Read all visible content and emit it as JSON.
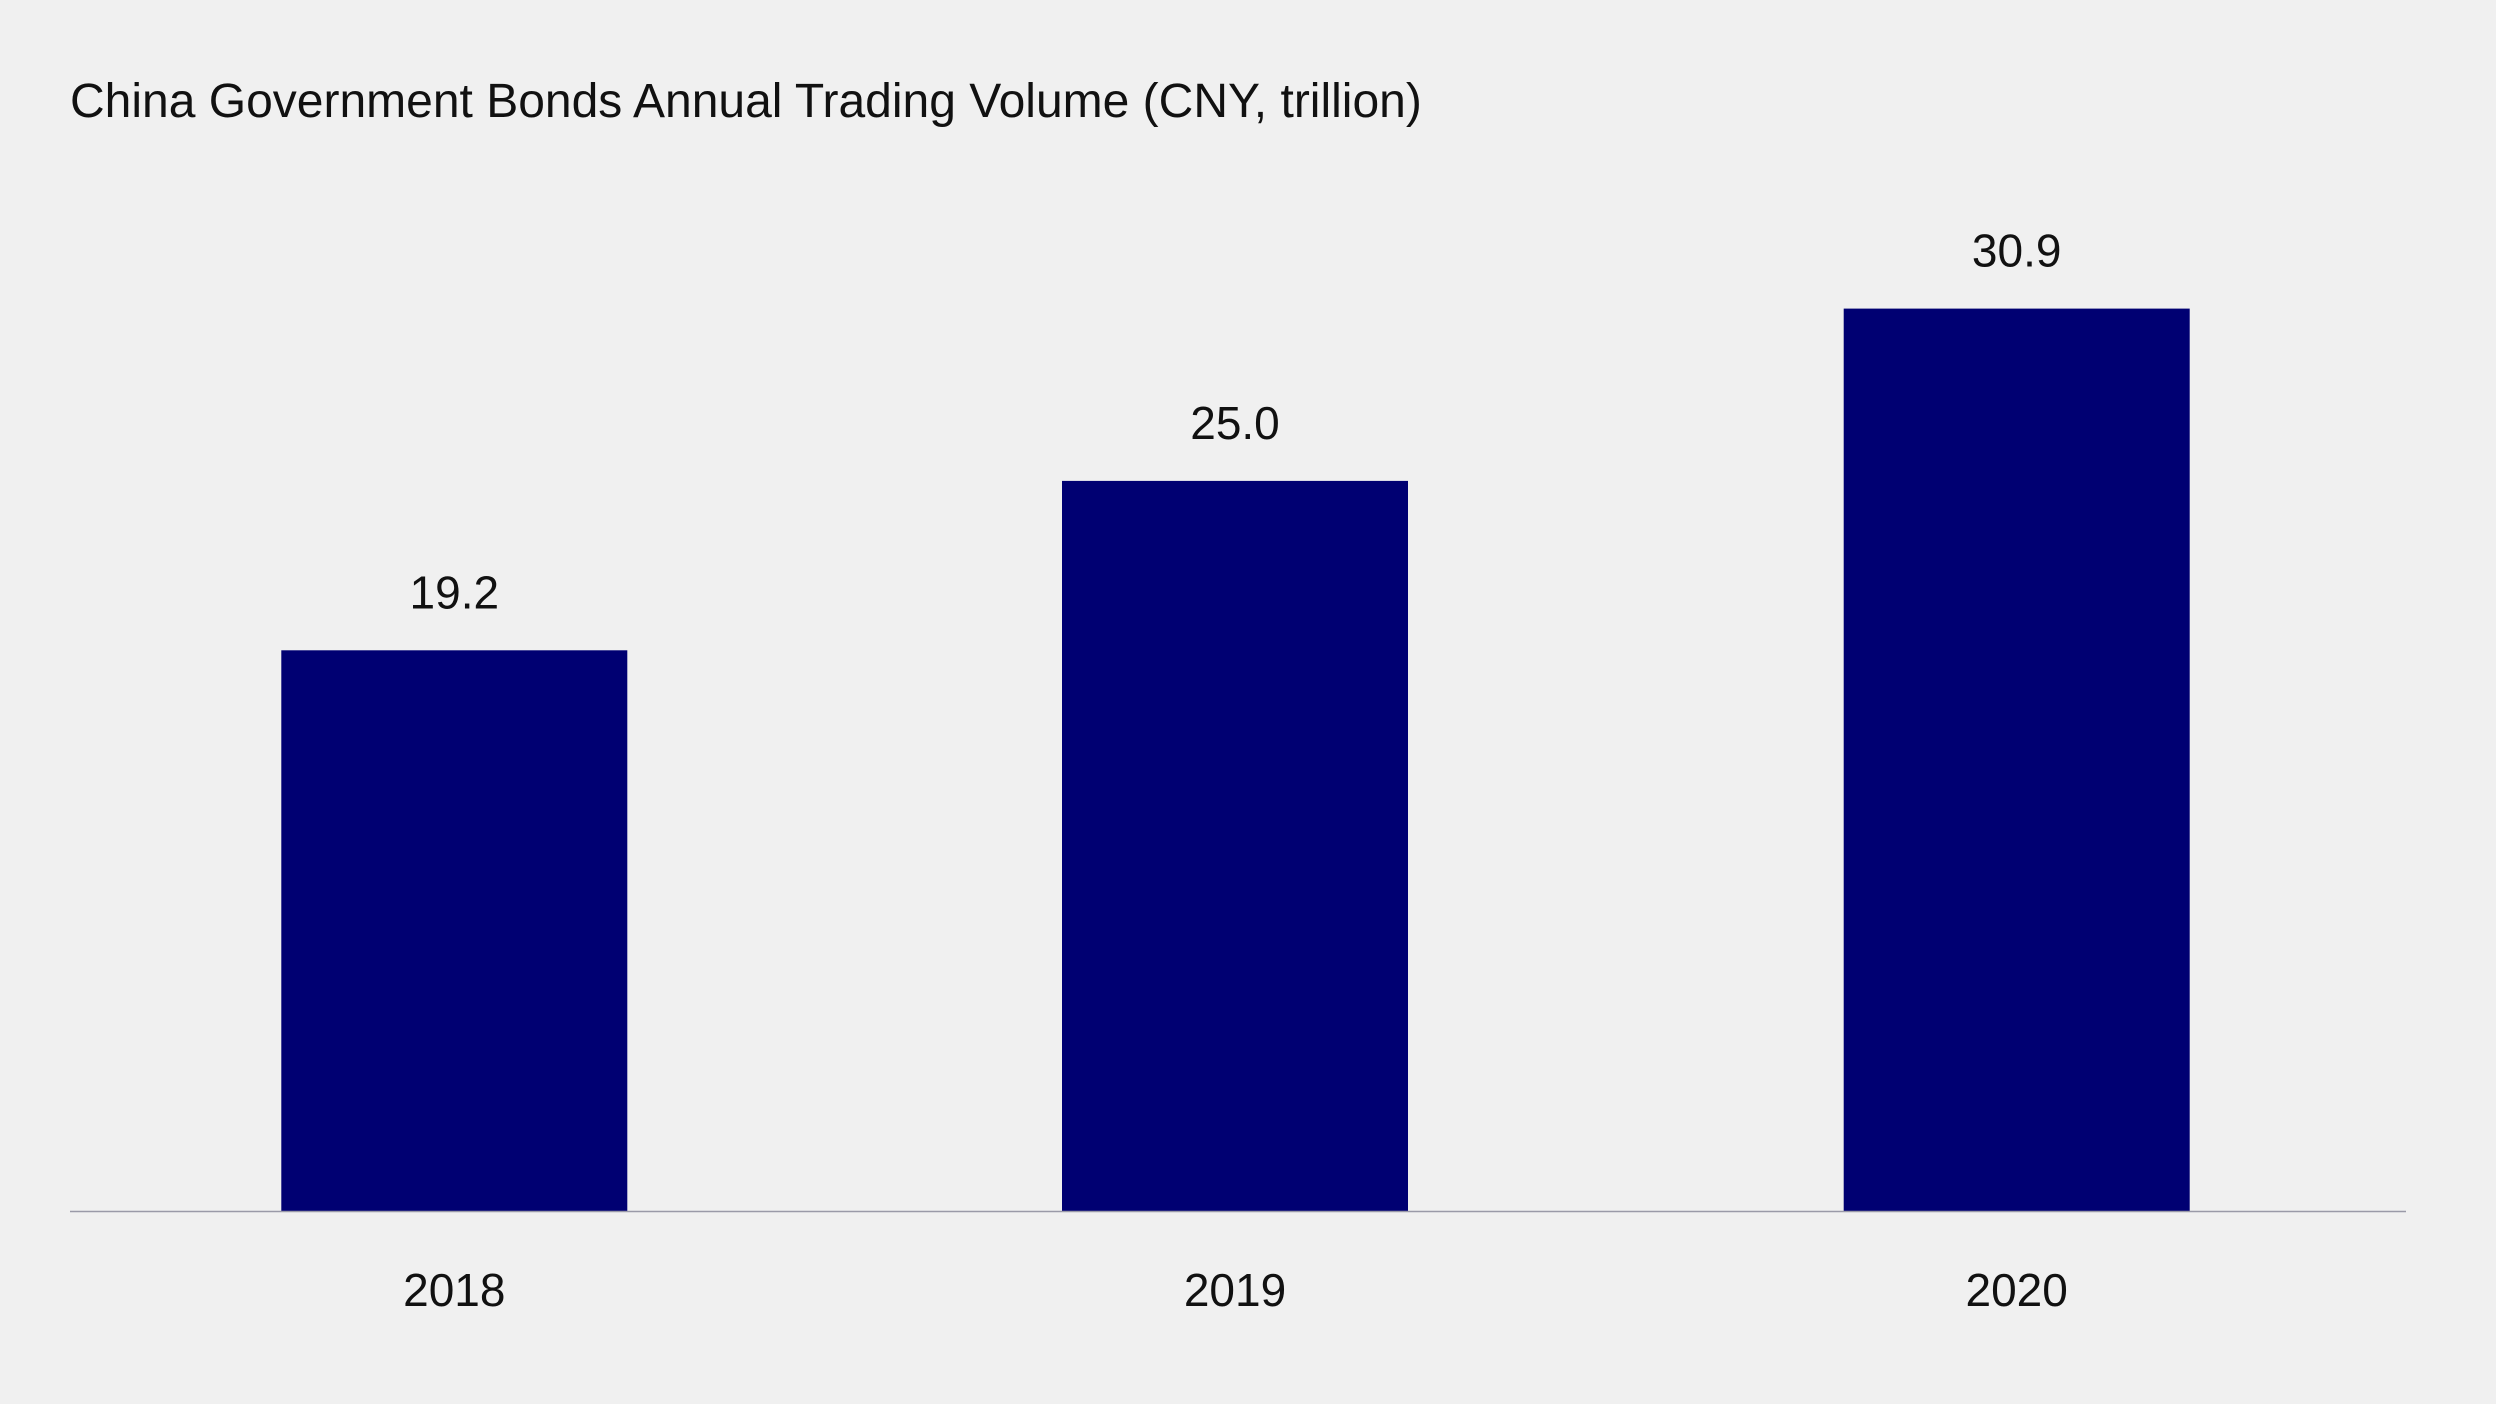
{
  "title": "China Government Bonds Annual Trading Volume (CNY, trillion)",
  "colors": {
    "background": "#f0f0f0",
    "bar": "#000072",
    "axis_line": "#9a9aa8",
    "text": "#111111"
  },
  "chart_data": {
    "type": "bar",
    "title": "China Government Bonds Annual Trading Volume (CNY, trillion)",
    "categories": [
      "2018",
      "2019",
      "2020"
    ],
    "values": [
      19.2,
      25.0,
      30.9
    ],
    "value_labels": [
      "19.2",
      "25.0",
      "30.9"
    ],
    "xlabel": "",
    "ylabel": "",
    "ylim": [
      0,
      36.5
    ],
    "grid": false,
    "legend": "none",
    "y_axis_visible": false
  }
}
